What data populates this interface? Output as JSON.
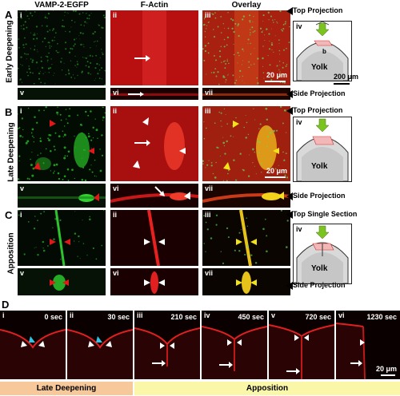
{
  "columns": {
    "c1": "VAMP-2-EGFP",
    "c2": "F-Actin",
    "c3": "Overlay"
  },
  "rows": {
    "A": {
      "letter": "A",
      "label": "Early Deepening"
    },
    "B": {
      "letter": "B",
      "label": "Late Deepening"
    },
    "C": {
      "letter": "C",
      "label": "Apposition"
    },
    "D": {
      "letter": "D"
    }
  },
  "projections": {
    "A_top": "Top Projection",
    "A_side": "Side Projection",
    "B_top": "Top Projection",
    "B_side": "Side Projection",
    "C_top": "Top Single Section",
    "C_side": "Side Projection"
  },
  "panel_labels": {
    "A": [
      "i",
      "ii",
      "iii",
      "iv",
      "v",
      "vi",
      "vii"
    ],
    "B": [
      "i",
      "ii",
      "iii",
      "iv",
      "v",
      "vi",
      "vii"
    ],
    "C": [
      "i",
      "ii",
      "iii",
      "iv",
      "v",
      "vi",
      "vii"
    ],
    "D": [
      "i",
      "ii",
      "iii",
      "iv",
      "v",
      "vi"
    ]
  },
  "scale_bars": {
    "A": "20 μm",
    "A_schematic": "200 μm",
    "B": "20 μm",
    "D": "20 μm"
  },
  "schematic": {
    "yolk": "Yolk",
    "b": "b"
  },
  "time_points": [
    "0 sec",
    "30 sec",
    "210 sec",
    "450 sec",
    "720 sec",
    "1230 sec"
  ],
  "phases": {
    "late": "Late Deepening",
    "apposition": "Apposition"
  },
  "colors": {
    "egfp": "#22c82a",
    "actin": "#e01818",
    "overlay_yellow": "#f2e21a",
    "arrow_green": "#7bc41f",
    "late_bg": "#f7c99a",
    "apposition_bg": "#fbf7a8"
  }
}
